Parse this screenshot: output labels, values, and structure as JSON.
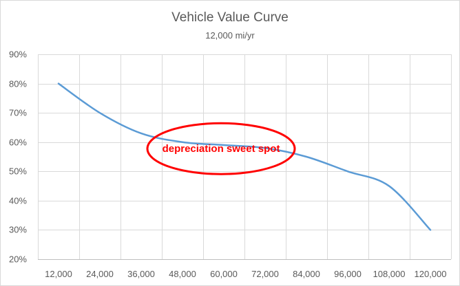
{
  "chart_data": {
    "type": "line",
    "title": "Vehicle Value Curve",
    "subtitle": "12,000 mi/yr",
    "xlabel": "",
    "ylabel": "",
    "categories": [
      "12,000",
      "24,000",
      "36,000",
      "48,000",
      "60,000",
      "72,000",
      "84,000",
      "96,000",
      "108,000",
      "120,000"
    ],
    "series": [
      {
        "name": "Vehicle Value",
        "values": [
          0.8,
          0.7,
          0.63,
          0.6,
          0.59,
          0.58,
          0.55,
          0.5,
          0.45,
          0.3
        ],
        "color": "#5b9bd5"
      }
    ],
    "ylim": [
      0.2,
      0.9
    ],
    "yticks": [
      0.2,
      0.3,
      0.4,
      0.5,
      0.6,
      0.7,
      0.8,
      0.9
    ],
    "ytick_labels": [
      "20%",
      "30%",
      "40%",
      "50%",
      "60%",
      "70%",
      "80%",
      "90%"
    ],
    "grid": true,
    "annotation": {
      "text": "depreciation sweet spot",
      "color": "#ff0000",
      "shape": "ellipse",
      "center_category": "60,000",
      "center_value": 0.58
    }
  }
}
